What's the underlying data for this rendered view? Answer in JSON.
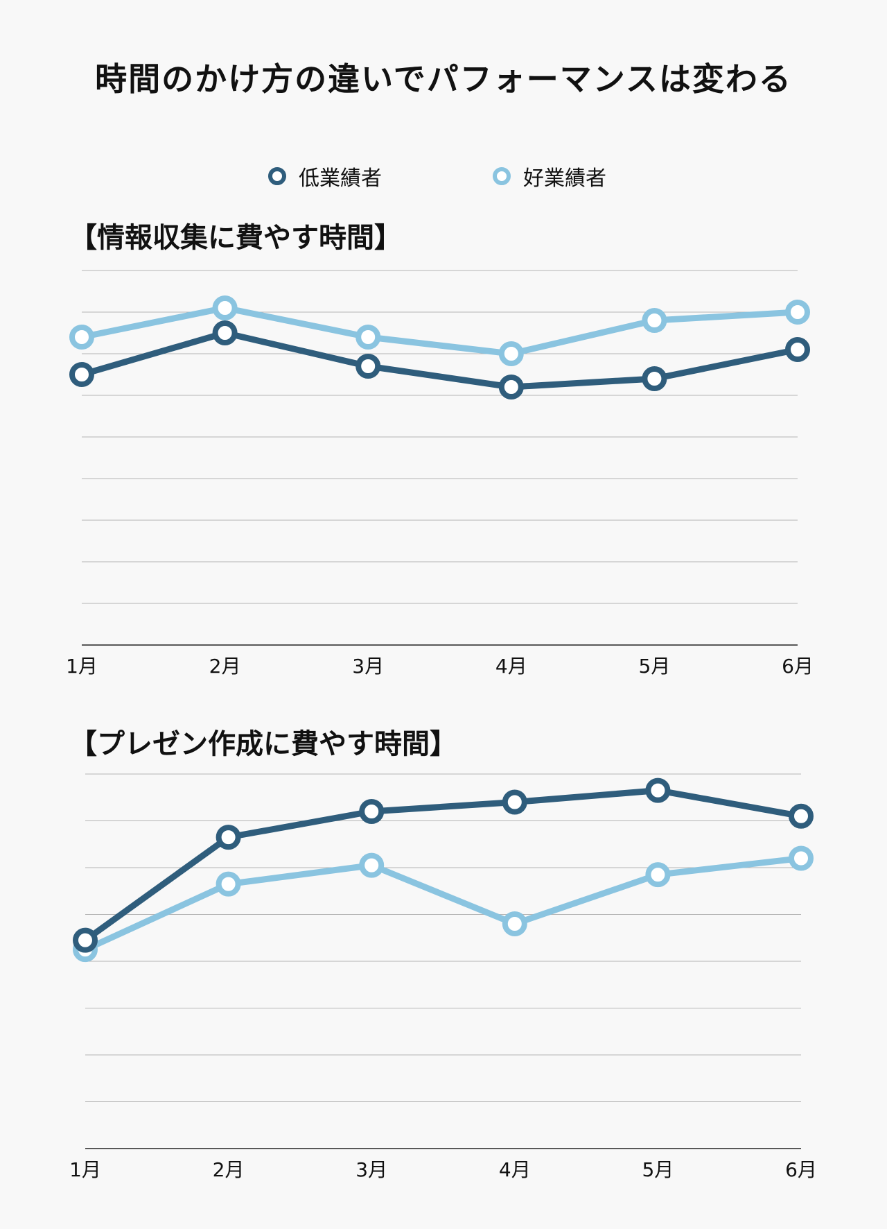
{
  "title": "時間のかけ方の違いでパフォーマンスは変わる",
  "legend": [
    {
      "label": "低業績者",
      "color": "#2f5d7c"
    },
    {
      "label": "好業績者",
      "color": "#8ac4e0"
    }
  ],
  "chart_data": [
    {
      "type": "line",
      "title": "【情報収集に費やす時間】",
      "categories": [
        "1月",
        "2月",
        "3月",
        "4月",
        "5月",
        "6月"
      ],
      "ylim": [
        0,
        9
      ],
      "grid": true,
      "legend_position": "top-center",
      "series": [
        {
          "name": "低業績者",
          "color": "#2f5d7c",
          "values": [
            6.5,
            7.5,
            6.7,
            6.2,
            6.4,
            7.1
          ]
        },
        {
          "name": "好業績者",
          "color": "#8ac4e0",
          "values": [
            7.4,
            8.1,
            7.4,
            7.0,
            7.8,
            8.0
          ]
        }
      ]
    },
    {
      "type": "line",
      "title": "【プレゼン作成に費やす時間】",
      "categories": [
        "1月",
        "2月",
        "3月",
        "4月",
        "5月",
        "6月"
      ],
      "ylim": [
        0,
        8
      ],
      "grid": true,
      "legend_position": "top-center",
      "series": [
        {
          "name": "低業績者",
          "color": "#2f5d7c",
          "values": [
            4.45,
            6.65,
            7.2,
            7.4,
            7.65,
            7.1
          ]
        },
        {
          "name": "好業績者",
          "color": "#8ac4e0",
          "values": [
            4.25,
            5.65,
            6.05,
            4.8,
            5.85,
            6.2
          ]
        }
      ]
    }
  ]
}
